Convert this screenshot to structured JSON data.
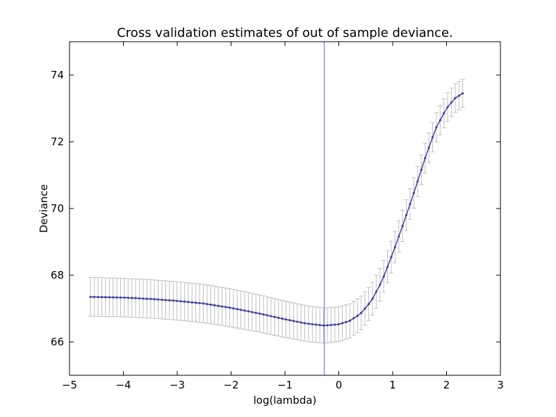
{
  "chart_data": {
    "type": "line",
    "title": "Cross validation estimates of out of sample deviance.",
    "xlabel": "log(lambda)",
    "ylabel": "Deviance",
    "xlim": [
      -5,
      3
    ],
    "ylim": [
      65,
      75
    ],
    "xticks": [
      -5,
      -4,
      -3,
      -2,
      -1,
      0,
      1,
      2,
      3
    ],
    "xtick_labels": [
      "−5",
      "−4",
      "−3",
      "−2",
      "−1",
      "0",
      "1",
      "2",
      "3"
    ],
    "yticks": [
      66,
      68,
      70,
      72,
      74
    ],
    "ytick_labels": [
      "66",
      "68",
      "70",
      "72",
      "74"
    ],
    "grid": false,
    "legend": "none",
    "vline_x": -0.27,
    "colors": {
      "line": "#3f3fa0",
      "error_bar": "#bfbfbf",
      "vline": "#7f7fe6"
    },
    "x_start": -4.61,
    "x_end": 2.3,
    "n_points": 100,
    "curve_knots": [
      [
        -4.61,
        67.35
      ],
      [
        -4.0,
        67.33
      ],
      [
        -3.5,
        67.29
      ],
      [
        -3.0,
        67.23
      ],
      [
        -2.5,
        67.15
      ],
      [
        -2.0,
        67.02
      ],
      [
        -1.5,
        66.86
      ],
      [
        -1.0,
        66.68
      ],
      [
        -0.6,
        66.55
      ],
      [
        -0.27,
        66.49
      ],
      [
        0.0,
        66.53
      ],
      [
        0.2,
        66.63
      ],
      [
        0.4,
        66.84
      ],
      [
        0.6,
        67.22
      ],
      [
        0.8,
        67.82
      ],
      [
        1.0,
        68.65
      ],
      [
        1.2,
        69.55
      ],
      [
        1.4,
        70.5
      ],
      [
        1.6,
        71.5
      ],
      [
        1.8,
        72.4
      ],
      [
        2.0,
        73.0
      ],
      [
        2.15,
        73.3
      ],
      [
        2.3,
        73.45
      ]
    ],
    "error_knots": [
      [
        -4.61,
        0.58
      ],
      [
        -2.0,
        0.57
      ],
      [
        -0.3,
        0.53
      ],
      [
        0.5,
        0.5
      ],
      [
        1.5,
        0.45
      ],
      [
        2.3,
        0.42
      ]
    ]
  }
}
